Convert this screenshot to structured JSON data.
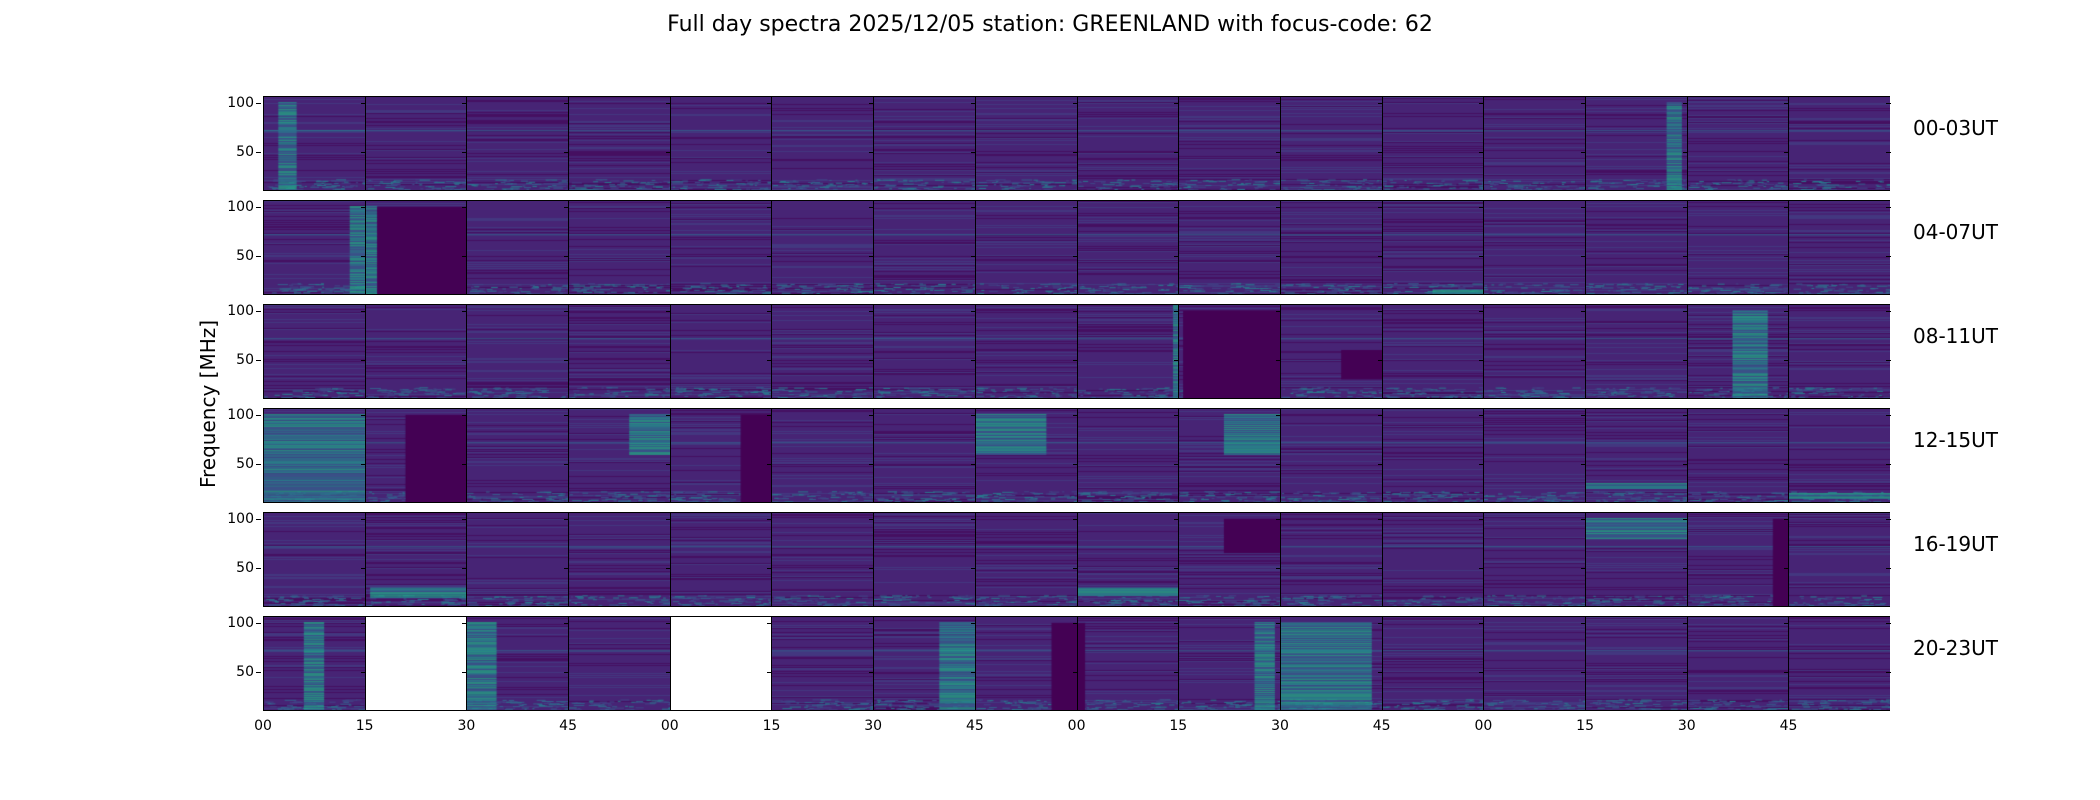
{
  "chart_data": {
    "type": "heatmap",
    "title": "Full day spectra 2025/12/05 station: GREENLAND with focus-code: 62",
    "ylabel": "Frequency [MHz]",
    "xlabel": "",
    "ylim": [
      10,
      107
    ],
    "yticks": [
      50,
      100
    ],
    "ytick_labels": [
      "50",
      "100"
    ],
    "xtick_labels": [
      "00",
      "15",
      "30",
      "45",
      "00",
      "15",
      "30",
      "45",
      "00",
      "15",
      "30",
      "45",
      "00",
      "15",
      "30",
      "45"
    ],
    "panel_minutes": 15,
    "panels_per_row": 16,
    "rows": [
      {
        "label": "00-03UT",
        "missing": [],
        "features": [
          {
            "panel": 0,
            "t": [
              0.15,
              0.33
            ],
            "kind": "bright",
            "f": [
              10,
              100
            ]
          },
          {
            "panel": 13,
            "t": [
              0.8,
              0.95
            ],
            "kind": "bright",
            "f": [
              10,
              100
            ]
          },
          {
            "panel": 0,
            "t": [
              0,
              1
            ],
            "kind": "line",
            "f": [
              72,
              72
            ]
          }
        ]
      },
      {
        "label": "04-07UT",
        "missing": [],
        "features": [
          {
            "panel": 0,
            "t": [
              0.85,
              1
            ],
            "kind": "bright",
            "f": [
              10,
              100
            ]
          },
          {
            "panel": 1,
            "t": [
              0,
              0.12
            ],
            "kind": "bright",
            "f": [
              10,
              100
            ]
          },
          {
            "panel": 1,
            "t": [
              0.12,
              1
            ],
            "kind": "dark",
            "f": [
              10,
              100
            ]
          },
          {
            "panel": 11,
            "t": [
              0.5,
              1
            ],
            "kind": "bright",
            "f": [
              12,
              16
            ]
          }
        ]
      },
      {
        "label": "08-11UT",
        "missing": [],
        "features": [
          {
            "panel": 8,
            "t": [
              0.95,
              1
            ],
            "kind": "bright",
            "f": [
              10,
              107
            ]
          },
          {
            "panel": 9,
            "t": [
              0.05,
              1
            ],
            "kind": "dark",
            "f": [
              10,
              100
            ]
          },
          {
            "panel": 10,
            "t": [
              0.6,
              1
            ],
            "kind": "dark",
            "f": [
              30,
              60
            ]
          },
          {
            "panel": 14,
            "t": [
              0.45,
              0.8
            ],
            "kind": "bright",
            "f": [
              10,
              100
            ]
          }
        ]
      },
      {
        "label": "12-15UT",
        "missing": [],
        "features": [
          {
            "panel": 0,
            "t": [
              0,
              1
            ],
            "kind": "bright",
            "f": [
              10,
              100
            ]
          },
          {
            "panel": 1,
            "t": [
              0.4,
              1
            ],
            "kind": "dark",
            "f": [
              10,
              100
            ]
          },
          {
            "panel": 3,
            "t": [
              0.6,
              1
            ],
            "kind": "bright",
            "f": [
              60,
              100
            ]
          },
          {
            "panel": 4,
            "t": [
              0.7,
              1
            ],
            "kind": "dark",
            "f": [
              10,
              100
            ]
          },
          {
            "panel": 7,
            "t": [
              0,
              0.7
            ],
            "kind": "bright",
            "f": [
              60,
              100
            ]
          },
          {
            "panel": 9,
            "t": [
              0.45,
              1
            ],
            "kind": "bright",
            "f": [
              60,
              100
            ]
          },
          {
            "panel": 13,
            "t": [
              0,
              1
            ],
            "kind": "bright",
            "f": [
              25,
              30
            ]
          },
          {
            "panel": 15,
            "t": [
              0,
              1
            ],
            "kind": "bright",
            "f": [
              15,
              20
            ]
          }
        ]
      },
      {
        "label": "16-19UT",
        "missing": [],
        "features": [
          {
            "panel": 1,
            "t": [
              0.05,
              1
            ],
            "kind": "bright",
            "f": [
              20,
              30
            ]
          },
          {
            "panel": 8,
            "t": [
              0,
              1
            ],
            "kind": "bright",
            "f": [
              22,
              30
            ]
          },
          {
            "panel": 9,
            "t": [
              0.45,
              1
            ],
            "kind": "dark",
            "f": [
              65,
              100
            ]
          },
          {
            "panel": 13,
            "t": [
              0,
              1
            ],
            "kind": "bright",
            "f": [
              80,
              100
            ]
          },
          {
            "panel": 14,
            "t": [
              0.85,
              1
            ],
            "kind": "dark",
            "f": [
              10,
              100
            ]
          }
        ]
      },
      {
        "label": "20-23UT",
        "missing": [
          1,
          4
        ],
        "features": [
          {
            "panel": 0,
            "t": [
              0.4,
              0.6
            ],
            "kind": "bright",
            "f": [
              10,
              100
            ]
          },
          {
            "panel": 2,
            "t": [
              0,
              0.3
            ],
            "kind": "bright",
            "f": [
              10,
              100
            ]
          },
          {
            "panel": 6,
            "t": [
              0.65,
              1
            ],
            "kind": "bright",
            "f": [
              10,
              100
            ]
          },
          {
            "panel": 7,
            "t": [
              0.75,
              1
            ],
            "kind": "dark",
            "f": [
              10,
              100
            ]
          },
          {
            "panel": 8,
            "t": [
              0,
              0.08
            ],
            "kind": "dark",
            "f": [
              10,
              100
            ]
          },
          {
            "panel": 9,
            "t": [
              0.75,
              0.95
            ],
            "kind": "bright",
            "f": [
              10,
              100
            ]
          },
          {
            "panel": 10,
            "t": [
              0,
              0.9
            ],
            "kind": "bright",
            "f": [
              10,
              100
            ]
          }
        ]
      }
    ],
    "colormap": [
      "#440154",
      "#482475",
      "#414487",
      "#355f8d",
      "#2a788e",
      "#21918c",
      "#22a884",
      "#44bf70",
      "#7ad151"
    ]
  }
}
